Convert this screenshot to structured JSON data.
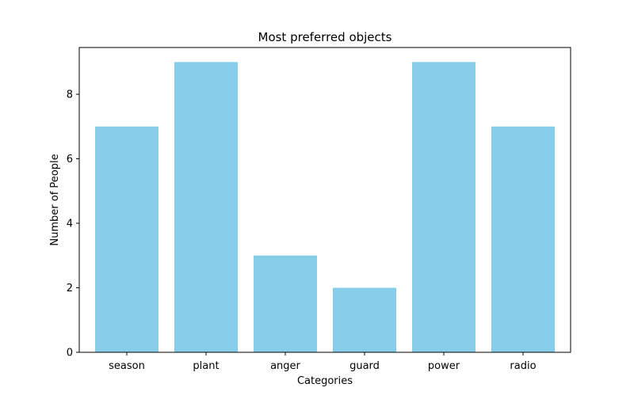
{
  "chart_data": {
    "type": "bar",
    "title": "Most preferred objects",
    "xlabel": "Categories",
    "ylabel": "Number of People",
    "categories": [
      "season",
      "plant",
      "anger",
      "guard",
      "power",
      "radio"
    ],
    "values": [
      7,
      9,
      3,
      2,
      9,
      7
    ],
    "ylim": [
      0,
      9.45
    ],
    "yticks": [
      0,
      2,
      4,
      6,
      8
    ],
    "grid": false,
    "bar_color": "#87CEEB",
    "axis_color": "#000000"
  }
}
